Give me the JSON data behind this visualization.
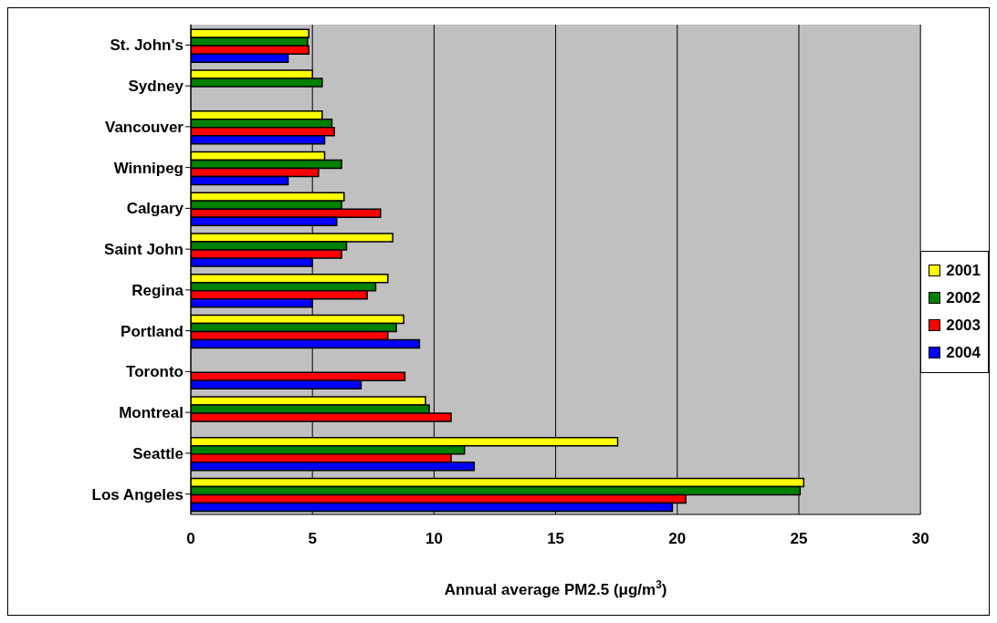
{
  "chart_data": {
    "type": "bar",
    "orientation": "horizontal",
    "xlabel": "Annual average PM2.5 (μg/m$^{3}$)",
    "categories": [
      "St. John's",
      "Sydney",
      "Vancouver",
      "Winnipeg",
      "Calgary",
      "Saint John",
      "Regina",
      "Portland",
      "Toronto",
      "Montreal",
      "Seattle",
      "Los Angeles"
    ],
    "series": [
      {
        "name": "2001",
        "color": "#ffff00",
        "values": [
          4.85,
          5.0,
          5.4,
          5.5,
          6.3,
          8.3,
          8.1,
          8.75,
          null,
          9.65,
          17.55,
          25.2
        ]
      },
      {
        "name": "2002",
        "color": "#008000",
        "values": [
          4.8,
          5.4,
          5.8,
          6.2,
          6.2,
          6.4,
          7.6,
          8.45,
          null,
          9.8,
          11.25,
          25.05
        ]
      },
      {
        "name": "2003",
        "color": "#ff0000",
        "values": [
          4.85,
          null,
          5.9,
          5.25,
          7.8,
          6.2,
          7.25,
          8.1,
          8.8,
          10.7,
          10.7,
          20.35
        ]
      },
      {
        "name": "2004",
        "color": "#0000ff",
        "values": [
          4.0,
          null,
          5.5,
          4.0,
          6.0,
          5.0,
          5.0,
          9.4,
          7.0,
          null,
          11.65,
          19.8
        ]
      }
    ],
    "xlim": [
      0,
      30
    ],
    "xticks": [
      0,
      5,
      10,
      15,
      20,
      25,
      30
    ],
    "grid": "x",
    "legend": "right"
  }
}
